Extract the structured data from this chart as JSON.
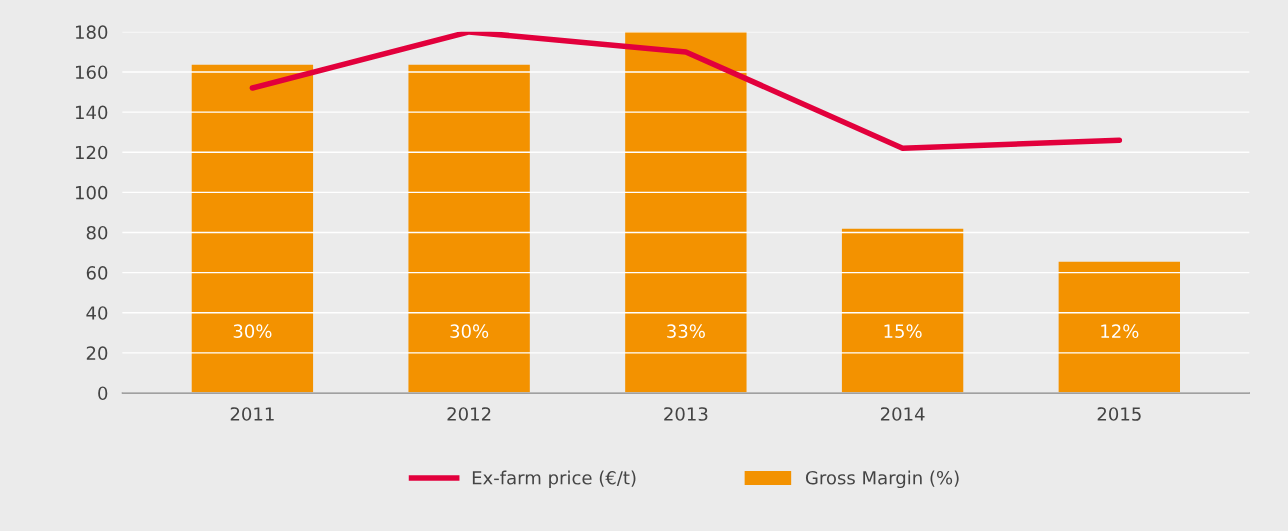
{
  "chart_data": {
    "type": "bar",
    "categories": [
      "2011",
      "2012",
      "2013",
      "2014",
      "2015"
    ],
    "series": [
      {
        "name": "Ex-farm price (€/t)",
        "type": "line",
        "color": "#e2003c",
        "values": [
          152,
          180,
          170,
          122,
          126
        ]
      },
      {
        "name": "Gross Margin (%)",
        "color": "#f39200",
        "values": [
          30,
          30,
          33,
          15,
          12
        ],
        "axis": "y2",
        "value_labels": [
          "30%",
          "30%",
          "33%",
          "15%",
          "12%"
        ]
      }
    ],
    "ylim": [
      0,
      180
    ],
    "yticks": [
      0,
      20,
      40,
      60,
      80,
      100,
      120,
      140,
      160,
      180
    ],
    "y2lim": [
      0,
      33
    ],
    "grid": "y",
    "legend": "bottom",
    "marker": "none"
  }
}
